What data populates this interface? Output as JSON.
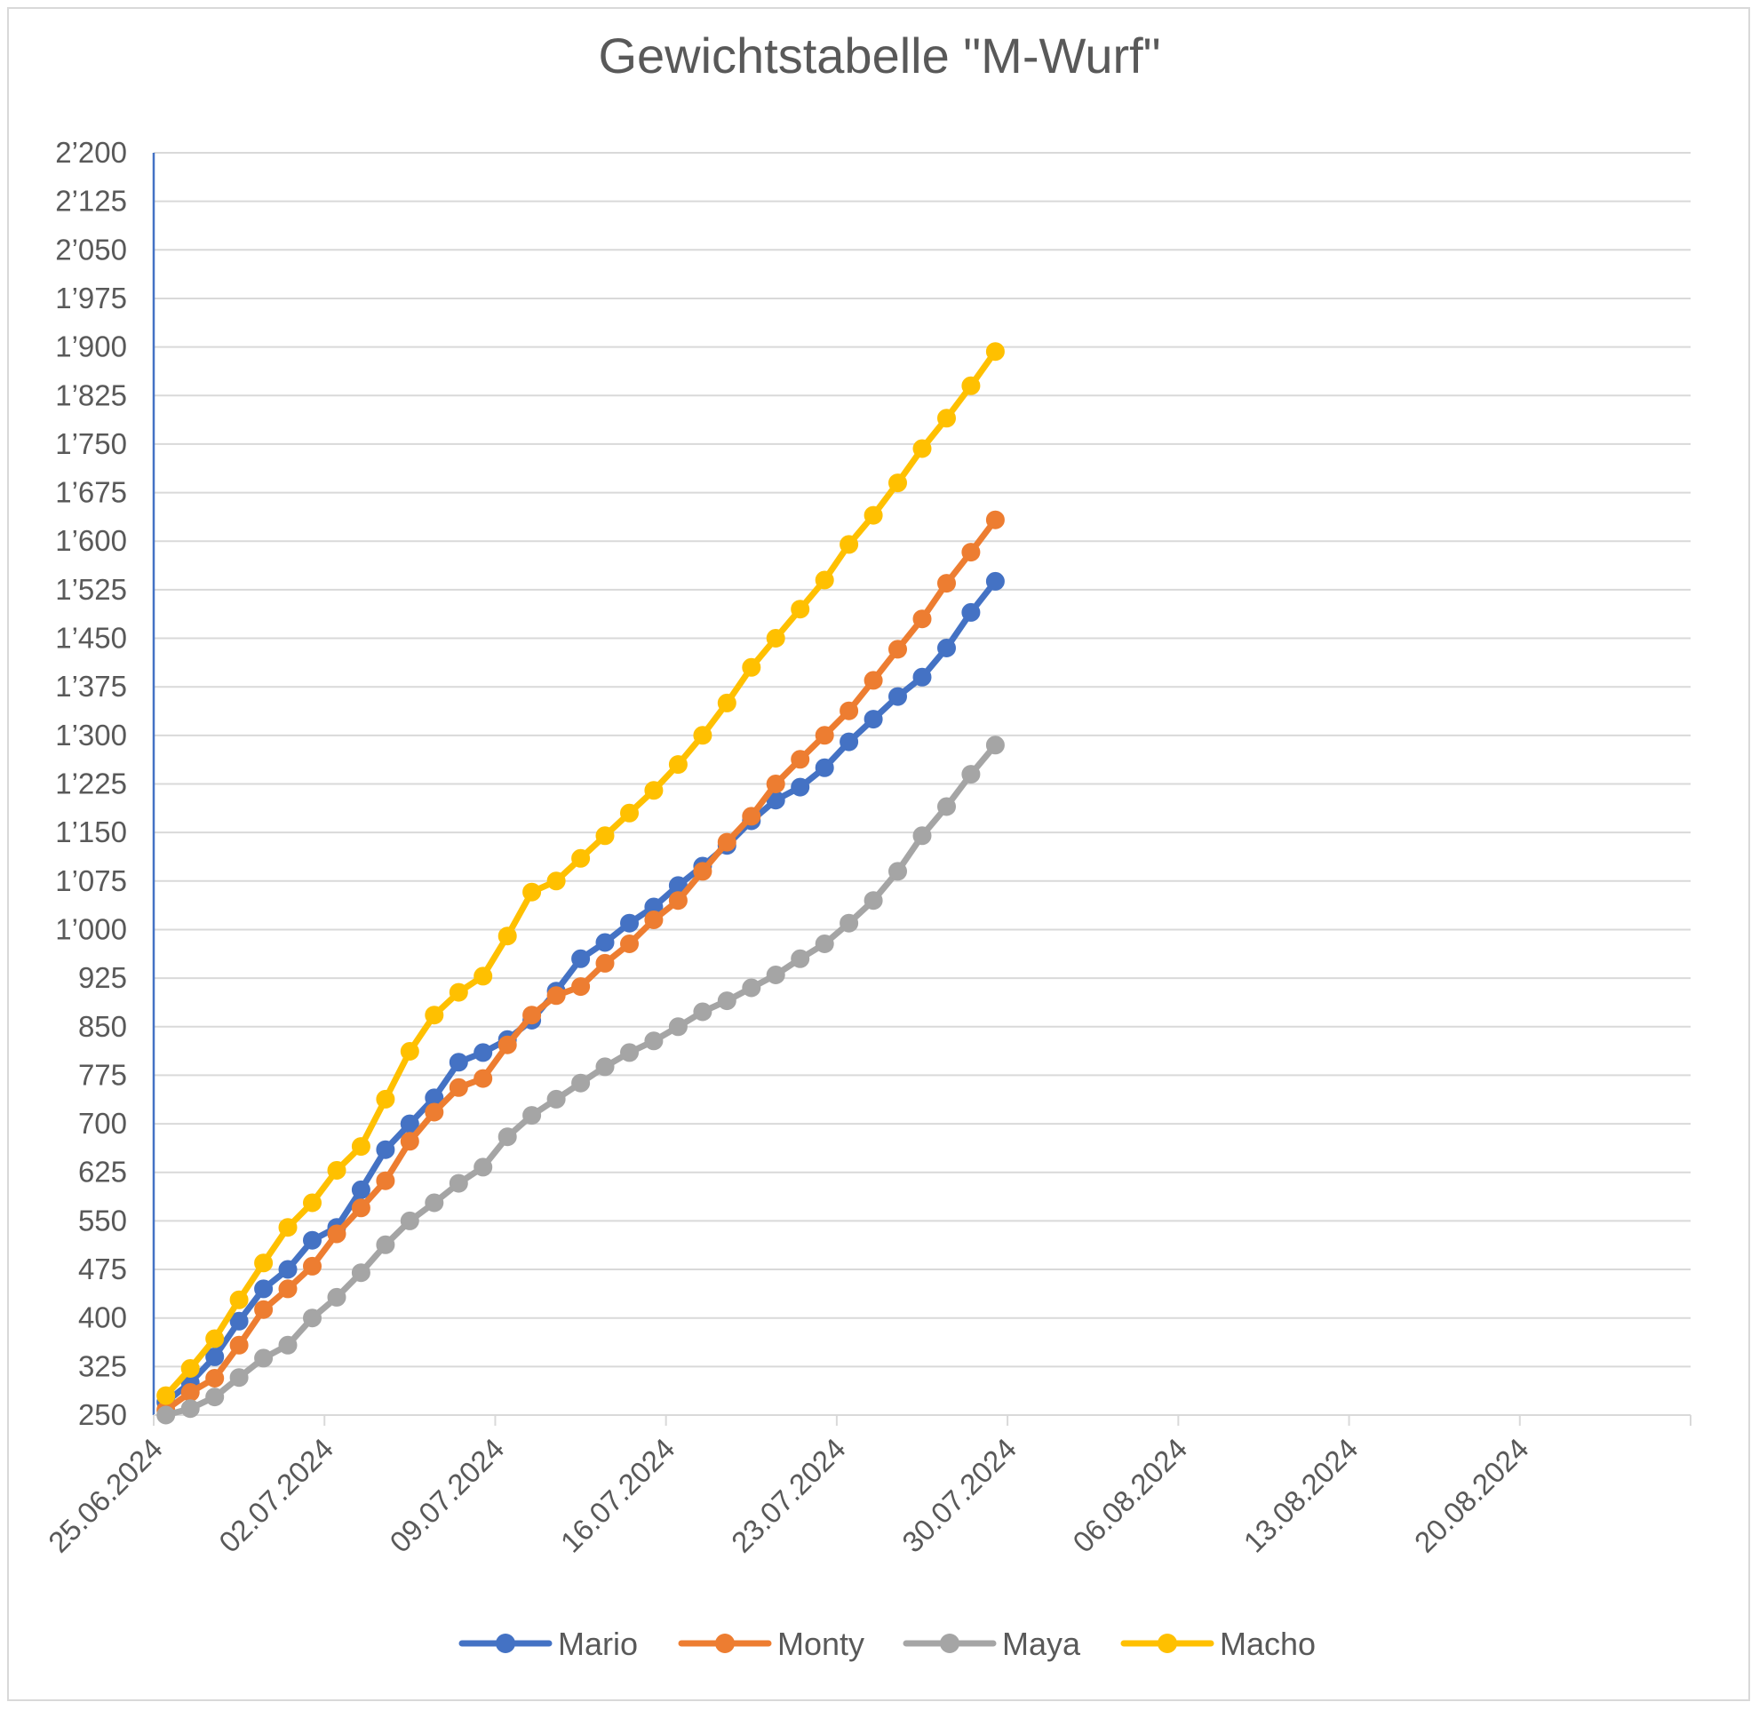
{
  "chart_data": {
    "type": "line",
    "title": "Gewichtstabelle \"M-Wurf\"",
    "xlabel": "",
    "ylabel": "",
    "ylim": [
      250,
      2200
    ],
    "yticks": [
      250,
      325,
      400,
      475,
      550,
      625,
      700,
      775,
      850,
      925,
      1000,
      1075,
      1150,
      1225,
      1300,
      1375,
      1450,
      1525,
      1600,
      1675,
      1750,
      1825,
      1900,
      1975,
      2050,
      2125,
      2200
    ],
    "ytick_labels": [
      "250",
      "325",
      "400",
      "475",
      "550",
      "625",
      "700",
      "775",
      "850",
      "925",
      "1’000",
      "1’075",
      "1’150",
      "1’225",
      "1’300",
      "1’375",
      "1’450",
      "1’525",
      "1’600",
      "1’675",
      "1’750",
      "1’825",
      "1’900",
      "1’975",
      "2’050",
      "2’125",
      "2’200"
    ],
    "xlim_days": [
      0,
      63
    ],
    "xticks_days": [
      0,
      7,
      14,
      21,
      28,
      35,
      42,
      49,
      56,
      63
    ],
    "xtick_labels": [
      "25.06.2024",
      "02.07.2024",
      "09.07.2024",
      "16.07.2024",
      "23.07.2024",
      "30.07.2024",
      "06.08.2024",
      "13.08.2024",
      "20.08.2024",
      ""
    ],
    "x_start_date": "25.06.2024",
    "x_day_offsets": [
      0.5,
      1.5,
      2.5,
      3.5,
      4.5,
      5.5,
      6.5,
      7.5,
      8.5,
      9.5,
      10.5,
      11.5,
      12.5,
      13.5,
      14.5,
      15.5,
      16.5,
      17.5,
      18.5,
      19.5,
      20.5,
      21.5,
      22.5,
      23.5,
      24.5,
      25.5,
      26.5,
      27.5,
      28.5,
      29.5,
      30.5,
      31.5,
      32.5,
      33.5,
      34.5
    ],
    "grid": true,
    "legend_position": "bottom",
    "series": [
      {
        "name": "Mario",
        "color": "#4472c4",
        "values": [
          270,
          300,
          340,
          395,
          445,
          475,
          520,
          540,
          598,
          660,
          700,
          740,
          795,
          810,
          830,
          860,
          905,
          955,
          980,
          1010,
          1035,
          1068,
          1098,
          1130,
          1168,
          1200,
          1220,
          1250,
          1290,
          1325,
          1360,
          1390,
          1435,
          1490,
          1538
        ]
      },
      {
        "name": "Monty",
        "color": "#ed7d31",
        "values": [
          258,
          285,
          307,
          358,
          413,
          445,
          480,
          530,
          570,
          612,
          673,
          718,
          756,
          770,
          822,
          868,
          898,
          912,
          948,
          978,
          1015,
          1045,
          1090,
          1135,
          1175,
          1225,
          1263,
          1300,
          1338,
          1385,
          1433,
          1480,
          1535,
          1583,
          1633
        ]
      },
      {
        "name": "Maya",
        "color": "#a5a5a5",
        "values": [
          250,
          260,
          278,
          308,
          338,
          358,
          400,
          432,
          470,
          513,
          550,
          578,
          608,
          633,
          680,
          713,
          738,
          763,
          788,
          810,
          828,
          850,
          873,
          890,
          910,
          930,
          955,
          978,
          1010,
          1045,
          1090,
          1145,
          1190,
          1240,
          1285
        ]
      },
      {
        "name": "Macho",
        "color": "#ffc000",
        "values": [
          280,
          322,
          368,
          428,
          485,
          540,
          578,
          628,
          665,
          738,
          812,
          868,
          903,
          928,
          990,
          1058,
          1075,
          1110,
          1145,
          1180,
          1215,
          1255,
          1300,
          1350,
          1405,
          1450,
          1495,
          1540,
          1595,
          1640,
          1690,
          1743,
          1790,
          1840,
          1893
        ]
      }
    ]
  }
}
